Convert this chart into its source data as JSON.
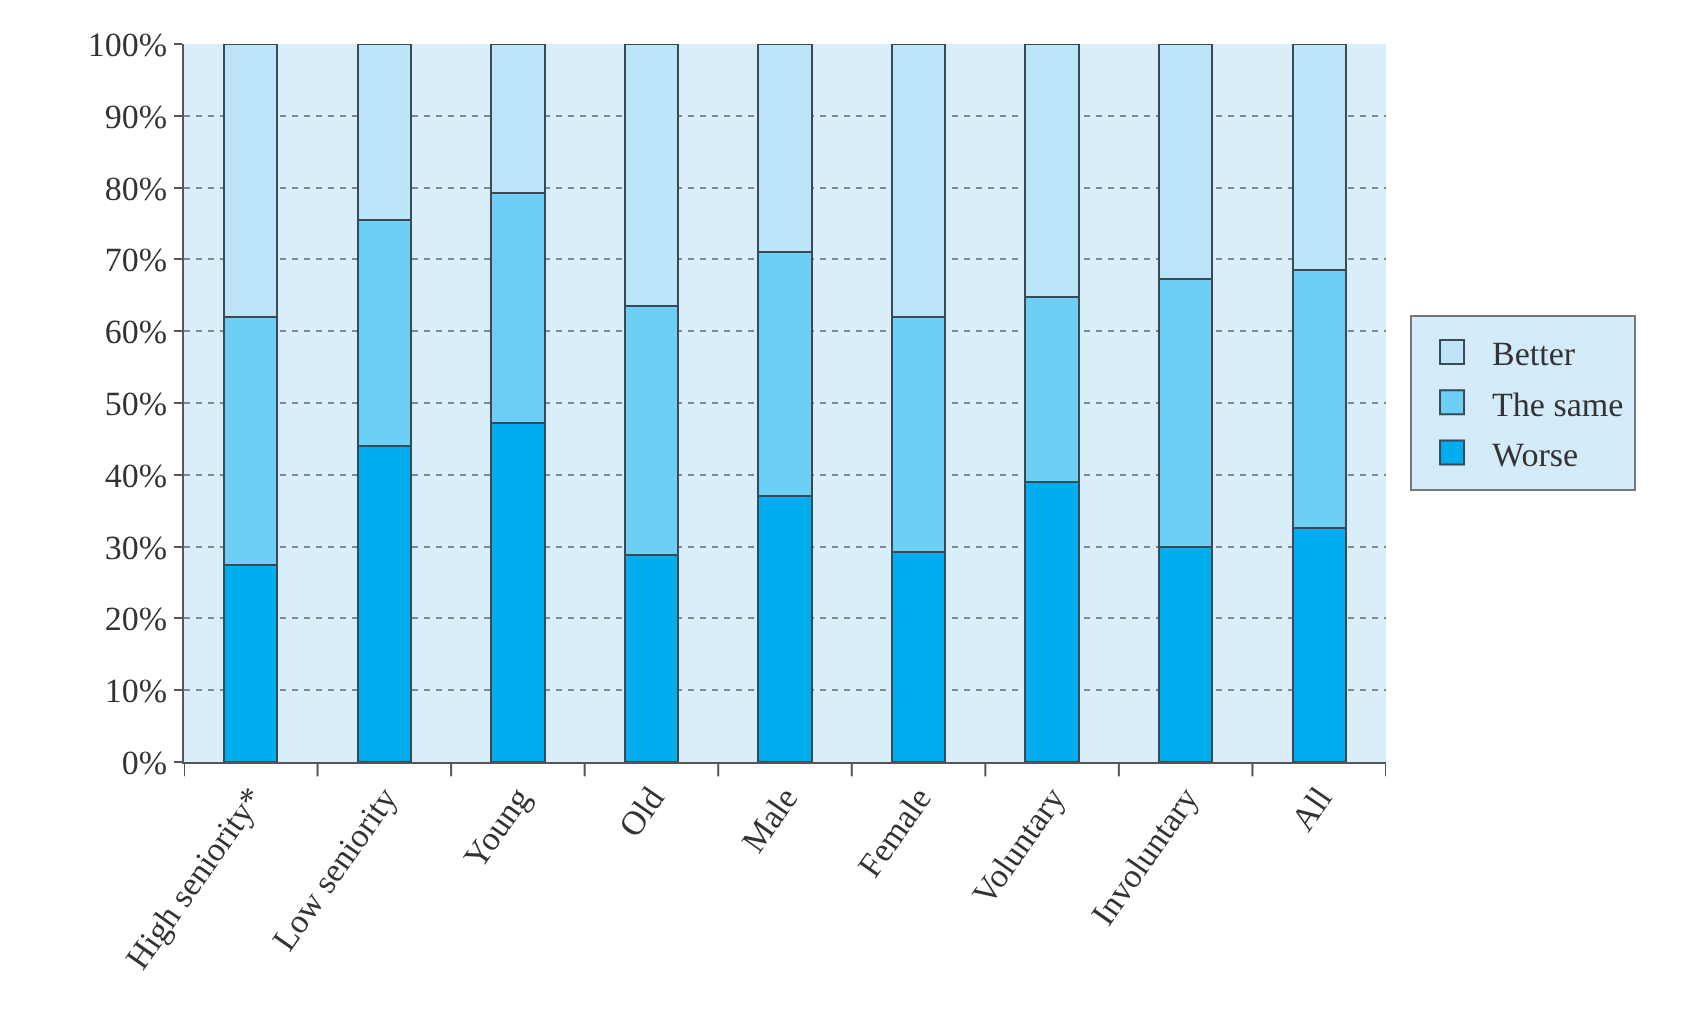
{
  "chart_data": {
    "type": "bar",
    "stacked": true,
    "categories": [
      "High seniority*",
      "Low seniority",
      "Young",
      "Old",
      "Male",
      "Female",
      "Voluntary",
      "Involuntary",
      "All"
    ],
    "series": [
      {
        "name": "Worse",
        "color": "#00adef",
        "values": [
          27.5,
          44,
          47.2,
          28.8,
          37,
          29.3,
          39,
          30,
          32.6
        ]
      },
      {
        "name": "The same",
        "color": "#6dcff6",
        "values": [
          34.5,
          31.5,
          32,
          34.7,
          34,
          32.7,
          25.7,
          37.3,
          35.9
        ]
      },
      {
        "name": "Better",
        "color": "#bce5fa",
        "values": [
          38,
          24.5,
          20.8,
          36.5,
          29,
          38,
          35.3,
          32.7,
          31.5
        ]
      }
    ],
    "ylim": [
      0,
      100
    ],
    "yticks": [
      {
        "value": 0,
        "label": "0%"
      },
      {
        "value": 10,
        "label": "10%"
      },
      {
        "value": 20,
        "label": "20%"
      },
      {
        "value": 30,
        "label": "30%"
      },
      {
        "value": 40,
        "label": "40%"
      },
      {
        "value": 50,
        "label": "50%"
      },
      {
        "value": 60,
        "label": "60%"
      },
      {
        "value": 70,
        "label": "70%"
      },
      {
        "value": 80,
        "label": "80%"
      },
      {
        "value": 90,
        "label": "90%"
      },
      {
        "value": 100,
        "label": "100%"
      }
    ],
    "grid": "y",
    "legend": "right"
  }
}
